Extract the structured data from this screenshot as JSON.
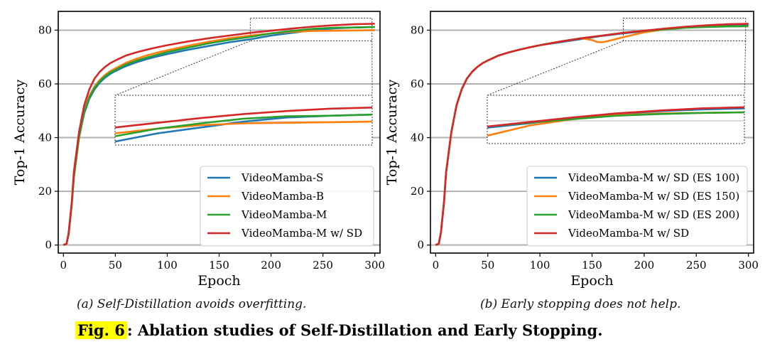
{
  "caption": {
    "label": "Fig. 6",
    "text": ": Ablation studies of Self-Distillation and Early Stopping."
  },
  "chart_data": [
    {
      "type": "line",
      "subcaption": "(a) Self-Distillation avoids overfitting.",
      "xlabel": "Epoch",
      "ylabel": "Top-1 Accuracy",
      "xlim": [
        -5,
        305
      ],
      "ylim": [
        -3,
        87
      ],
      "xticks": [
        0,
        50,
        100,
        150,
        200,
        250,
        300
      ],
      "yticks": [
        0,
        20,
        40,
        60,
        80
      ],
      "grid": "horizontal",
      "legend_position": "lower-right",
      "inset": {
        "x_range": [
          180,
          300
        ],
        "y_range": [
          76,
          84.5
        ]
      },
      "series": [
        {
          "name": "VideoMamba-S",
          "color": "#1f77b4",
          "x": [
            0,
            3,
            5,
            8,
            10,
            15,
            20,
            25,
            30,
            35,
            40,
            45,
            50,
            60,
            70,
            80,
            90,
            100,
            120,
            140,
            160,
            180,
            200,
            220,
            240,
            260,
            280,
            300
          ],
          "y": [
            0,
            0.5,
            4,
            15,
            25,
            40,
            49,
            54.5,
            58,
            60.5,
            62.3,
            63.7,
            64.8,
            66.6,
            68,
            69.2,
            70.2,
            71.1,
            72.7,
            74.1,
            75.5,
            76.6,
            78,
            79,
            80,
            80.7,
            81,
            81.2
          ]
        },
        {
          "name": "VideoMamba-B",
          "color": "#ff7f0e",
          "x": [
            0,
            3,
            5,
            8,
            10,
            15,
            20,
            25,
            30,
            35,
            40,
            45,
            50,
            60,
            70,
            80,
            90,
            100,
            120,
            140,
            160,
            180,
            200,
            220,
            240,
            260,
            280,
            300
          ],
          "y": [
            0,
            0.5,
            4,
            15,
            25,
            40,
            50,
            55.5,
            59,
            61.5,
            63.3,
            64.7,
            65.8,
            67.8,
            69.3,
            70.6,
            71.6,
            72.5,
            74.2,
            75.7,
            77,
            78,
            78.8,
            79.4,
            79.7,
            79.8,
            79.9,
            80
          ]
        },
        {
          "name": "VideoMamba-M",
          "color": "#2ca02c",
          "x": [
            0,
            3,
            5,
            8,
            10,
            15,
            20,
            25,
            30,
            35,
            40,
            45,
            50,
            60,
            70,
            80,
            90,
            100,
            120,
            140,
            160,
            180,
            200,
            220,
            240,
            260,
            280,
            300
          ],
          "y": [
            0,
            0.5,
            4,
            15,
            25,
            40,
            49.5,
            55,
            58.5,
            61,
            62.8,
            64.2,
            65.2,
            67.2,
            68.6,
            69.8,
            70.8,
            71.8,
            73.5,
            75.1,
            76.4,
            77.5,
            78.8,
            79.7,
            80.5,
            80.9,
            81,
            81.2
          ]
        },
        {
          "name": "VideoMamba-M w/ SD",
          "color": "#d62728",
          "x": [
            0,
            3,
            5,
            8,
            10,
            15,
            20,
            25,
            30,
            35,
            40,
            45,
            50,
            60,
            70,
            80,
            90,
            100,
            120,
            140,
            160,
            180,
            200,
            220,
            240,
            260,
            280,
            300
          ],
          "y": [
            0,
            0.5,
            4.5,
            16,
            27,
            42,
            52,
            58,
            62,
            64.5,
            66.3,
            67.7,
            68.7,
            70.5,
            71.7,
            72.7,
            73.6,
            74.4,
            75.8,
            77,
            78,
            79,
            79.8,
            80.6,
            81.3,
            81.8,
            82.2,
            82.4
          ]
        }
      ]
    },
    {
      "type": "line",
      "subcaption": "(b) Early stopping does not help.",
      "xlabel": "Epoch",
      "ylabel": "Top-1 Accuracy",
      "xlim": [
        -5,
        305
      ],
      "ylim": [
        -3,
        87
      ],
      "xticks": [
        0,
        50,
        100,
        150,
        200,
        250,
        300
      ],
      "yticks": [
        0,
        20,
        40,
        60,
        80
      ],
      "grid": "horizontal",
      "legend_position": "lower-right",
      "inset": {
        "x_range": [
          180,
          300
        ],
        "y_range": [
          76,
          84.5
        ]
      },
      "series": [
        {
          "name": "VideoMamba-M w/ SD (ES 100)",
          "color": "#1f77b4",
          "x": [
            0,
            3,
            5,
            8,
            10,
            15,
            20,
            25,
            30,
            35,
            40,
            45,
            50,
            60,
            70,
            80,
            90,
            100,
            120,
            140,
            160,
            180,
            200,
            220,
            240,
            260,
            280,
            300
          ],
          "y": [
            0,
            0.5,
            4.5,
            16,
            27,
            42,
            52,
            58,
            62,
            64.5,
            66.3,
            67.7,
            68.7,
            70.5,
            71.7,
            72.7,
            73.6,
            74.4,
            75.5,
            76.7,
            77.9,
            78.8,
            79.6,
            80.5,
            81.2,
            81.7,
            82,
            82.2
          ]
        },
        {
          "name": "VideoMamba-M w/ SD (ES 150)",
          "color": "#ff7f0e",
          "x": [
            0,
            3,
            5,
            8,
            10,
            15,
            20,
            25,
            30,
            35,
            40,
            45,
            50,
            60,
            70,
            80,
            90,
            100,
            120,
            140,
            150,
            155,
            160,
            165,
            170,
            180,
            200,
            220,
            240,
            260,
            280,
            300
          ],
          "y": [
            0,
            0.5,
            4.5,
            16,
            27,
            42,
            52,
            58,
            62,
            64.5,
            66.3,
            67.7,
            68.7,
            70.5,
            71.7,
            72.7,
            73.6,
            74.4,
            75.8,
            77,
            76.3,
            75.6,
            75.5,
            75.9,
            76.4,
            77.4,
            79.2,
            80.3,
            81,
            81.3,
            81.4,
            81.5
          ]
        },
        {
          "name": "VideoMamba-M w/ SD (ES 200)",
          "color": "#2ca02c",
          "x": [
            0,
            3,
            5,
            8,
            10,
            15,
            20,
            25,
            30,
            35,
            40,
            45,
            50,
            60,
            70,
            80,
            90,
            100,
            120,
            140,
            160,
            180,
            200,
            220,
            240,
            260,
            280,
            300
          ],
          "y": [
            0,
            0.5,
            4.5,
            16,
            27,
            42,
            52,
            58,
            62,
            64.5,
            66.3,
            67.7,
            68.7,
            70.5,
            71.7,
            72.7,
            73.6,
            74.4,
            75.8,
            77,
            78,
            79,
            79.7,
            80.3,
            80.9,
            81.2,
            81.4,
            81.5
          ]
        },
        {
          "name": "VideoMamba-M w/ SD",
          "color": "#d62728",
          "x": [
            0,
            3,
            5,
            8,
            10,
            15,
            20,
            25,
            30,
            35,
            40,
            45,
            50,
            60,
            70,
            80,
            90,
            100,
            120,
            140,
            160,
            180,
            200,
            220,
            240,
            260,
            280,
            300
          ],
          "y": [
            0,
            0.5,
            4.5,
            16,
            27,
            42,
            52,
            58,
            62,
            64.5,
            66.3,
            67.7,
            68.7,
            70.5,
            71.7,
            72.7,
            73.6,
            74.4,
            75.8,
            77,
            78,
            79,
            79.8,
            80.6,
            81.3,
            81.8,
            82.2,
            82.4
          ]
        }
      ]
    }
  ]
}
